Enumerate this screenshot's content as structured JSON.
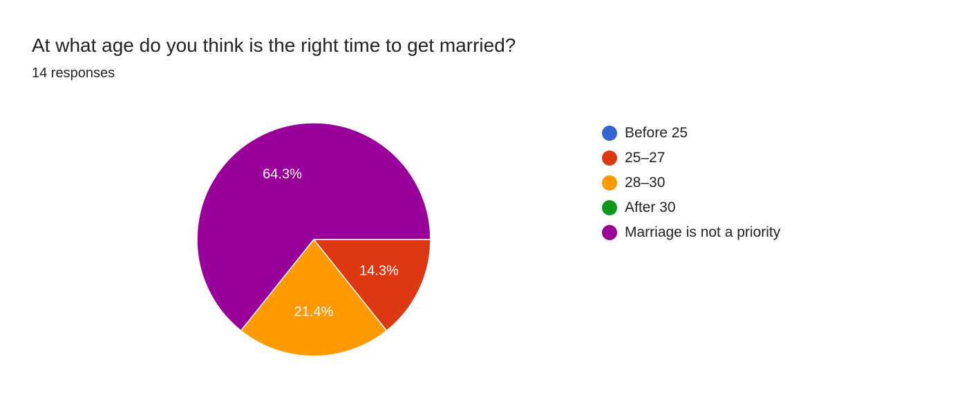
{
  "header": {
    "question": "At what age do you think is the right time to get married?",
    "responses": "14 responses"
  },
  "chart_data": {
    "type": "pie",
    "title": "At what age do you think is the right time to get married?",
    "total_responses": 14,
    "legend_position": "right",
    "slices": [
      {
        "label": "Before 25",
        "value": 0,
        "percent": 0,
        "percent_label": "",
        "color": "#3366cc"
      },
      {
        "label": "25–27",
        "value": 2,
        "percent": 14.3,
        "percent_label": "14.3%",
        "color": "#dc3912"
      },
      {
        "label": "28–30",
        "value": 3,
        "percent": 21.4,
        "percent_label": "21.4%",
        "color": "#ff9900"
      },
      {
        "label": "After 30",
        "value": 0,
        "percent": 0,
        "percent_label": "",
        "color": "#109618"
      },
      {
        "label": "Marriage is not a priority",
        "value": 9,
        "percent": 64.3,
        "percent_label": "64.3%",
        "color": "#990099"
      }
    ]
  }
}
